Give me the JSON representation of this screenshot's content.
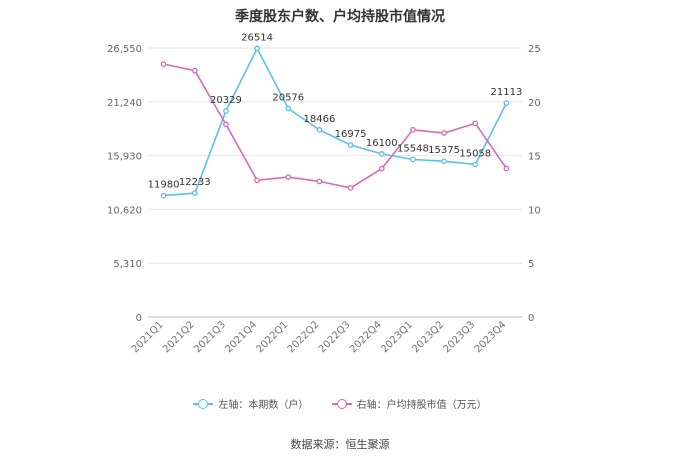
{
  "chart_data": {
    "type": "line",
    "title": "季度股东户数、户均持股市值情况",
    "categories": [
      "2021Q1",
      "2021Q2",
      "2021Q3",
      "2021Q4",
      "2022Q1",
      "2022Q2",
      "2022Q3",
      "2022Q4",
      "2023Q1",
      "2023Q2",
      "2023Q3",
      "2023Q4"
    ],
    "left_axis": {
      "ylim": [
        0,
        26550
      ],
      "ticks": [
        "0",
        "5,310",
        "10,620",
        "15,930",
        "21,240",
        "26,550"
      ]
    },
    "right_axis": {
      "ylim": [
        0,
        25
      ],
      "ticks": [
        "0",
        "5",
        "10",
        "15",
        "20",
        "25"
      ]
    },
    "series": [
      {
        "name": "左轴：本期数（户）",
        "axis": "left",
        "color": "#5bc0eb",
        "values": [
          11980,
          12233,
          20329,
          26514,
          20576,
          18466,
          16975,
          16100,
          15548,
          15375,
          15058,
          21113
        ],
        "labels": [
          "11980",
          "12233",
          "20329",
          "26514",
          "20576",
          "18466",
          "16975",
          "16100",
          "15548",
          "15375",
          "15058",
          "21113"
        ]
      },
      {
        "name": "右轴：户均持股市值（万元）",
        "axis": "right",
        "color": "#d86bb5",
        "values": [
          23.5,
          22.9,
          17.9,
          12.7,
          13.0,
          12.6,
          12.0,
          13.8,
          17.4,
          17.1,
          18.0,
          13.8
        ]
      }
    ],
    "grid": true,
    "legend": "bottom"
  },
  "source": "数据来源：恒生聚源"
}
